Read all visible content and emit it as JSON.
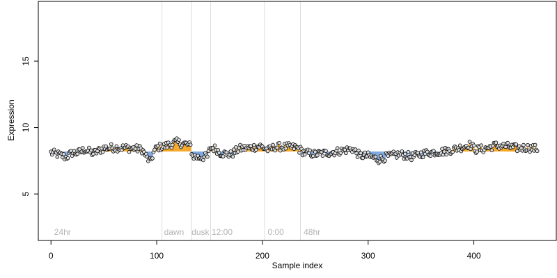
{
  "chart_data": {
    "type": "scatter",
    "title": "",
    "xlabel": "Sample index",
    "ylabel": "Expression",
    "xlim": [
      -12,
      478
    ],
    "ylim": [
      1.5,
      19.5
    ],
    "x_ticks": [
      0,
      100,
      200,
      300,
      400
    ],
    "y_ticks": [
      5,
      10,
      15
    ],
    "baseline": 8.2,
    "colors": {
      "above": "#f5a623",
      "below": "#7ba7e0",
      "point_fill": "#dddddd",
      "point_stroke": "#000000",
      "vline": "#dddddd",
      "annotation": "#b3b3b3"
    },
    "vlines": [
      105,
      133,
      151,
      202,
      236
    ],
    "annotations": [
      {
        "x": 3,
        "label": "24hr"
      },
      {
        "x": 107,
        "label": "dawn"
      },
      {
        "x": 133,
        "label": "dusk"
      },
      {
        "x": 152,
        "label": "12:00"
      },
      {
        "x": 205,
        "label": "0:00"
      },
      {
        "x": 239,
        "label": "48hr"
      }
    ],
    "anchors": [
      [
        0,
        8.1
      ],
      [
        8,
        7.95
      ],
      [
        14,
        7.75
      ],
      [
        20,
        8.1
      ],
      [
        26,
        8.1
      ],
      [
        32,
        8.35
      ],
      [
        40,
        8.05
      ],
      [
        50,
        8.45
      ],
      [
        62,
        8.5
      ],
      [
        75,
        8.45
      ],
      [
        86,
        8.35
      ],
      [
        91,
        7.7
      ],
      [
        94,
        7.4
      ],
      [
        97,
        8.1
      ],
      [
        100,
        8.5
      ],
      [
        108,
        8.6
      ],
      [
        118,
        8.9
      ],
      [
        128,
        8.75
      ],
      [
        132,
        8.6
      ],
      [
        134,
        7.85
      ],
      [
        140,
        7.75
      ],
      [
        148,
        7.8
      ],
      [
        151,
        8.5
      ],
      [
        156,
        8.4
      ],
      [
        160,
        8.1
      ],
      [
        170,
        7.95
      ],
      [
        178,
        8.4
      ],
      [
        190,
        8.5
      ],
      [
        198,
        8.6
      ],
      [
        206,
        8.3
      ],
      [
        212,
        8.55
      ],
      [
        220,
        8.55
      ],
      [
        232,
        8.5
      ],
      [
        240,
        8.1
      ],
      [
        250,
        8.0
      ],
      [
        262,
        8.1
      ],
      [
        275,
        8.25
      ],
      [
        285,
        8.4
      ],
      [
        292,
        7.9
      ],
      [
        300,
        7.85
      ],
      [
        310,
        7.6
      ],
      [
        318,
        7.8
      ],
      [
        330,
        8.0
      ],
      [
        342,
        7.8
      ],
      [
        352,
        8.05
      ],
      [
        362,
        8.15
      ],
      [
        372,
        8.2
      ],
      [
        380,
        8.35
      ],
      [
        390,
        8.55
      ],
      [
        395,
        8.75
      ],
      [
        402,
        8.35
      ],
      [
        410,
        8.4
      ],
      [
        420,
        8.65
      ],
      [
        430,
        8.6
      ],
      [
        440,
        8.45
      ],
      [
        450,
        8.5
      ],
      [
        460,
        8.4
      ]
    ],
    "n_points": 461,
    "noise_amplitude": 0.3
  }
}
